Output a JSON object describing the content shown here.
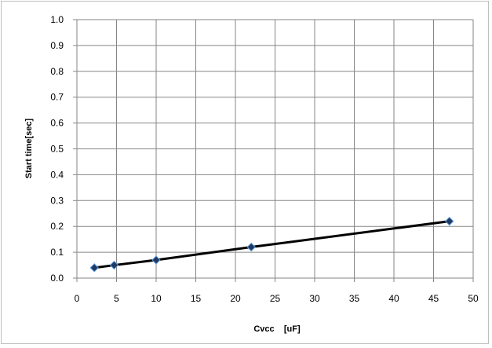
{
  "chart_data": {
    "type": "scatter",
    "title": "",
    "xlabel": "Cvcc    [uF]",
    "ylabel": "Start time[sec]",
    "xlim": [
      0,
      50
    ],
    "ylim": [
      0,
      1.0
    ],
    "xticks": [
      0,
      5,
      10,
      15,
      20,
      25,
      30,
      35,
      40,
      45,
      50
    ],
    "yticks": [
      0.0,
      0.1,
      0.2,
      0.3,
      0.4,
      0.5,
      0.6,
      0.7,
      0.8,
      0.9,
      1.0
    ],
    "x_tick_labels": [
      "0",
      "5",
      "10",
      "15",
      "20",
      "25",
      "30",
      "35",
      "40",
      "45",
      "50"
    ],
    "y_tick_labels": [
      "0.0",
      "0.1",
      "0.2",
      "0.3",
      "0.4",
      "0.5",
      "0.6",
      "0.7",
      "0.8",
      "0.9",
      "1.0"
    ],
    "grid": true,
    "legend": "none",
    "series": [
      {
        "x": [
          2.2,
          4.7,
          10,
          22,
          47
        ],
        "y": [
          0.04,
          0.05,
          0.07,
          0.12,
          0.22
        ],
        "marker": "diamond",
        "line": "linear-trend",
        "marker_color": "#1f3864",
        "marker_edge_color": "#5b9bd5",
        "line_color": "#000000"
      }
    ]
  }
}
